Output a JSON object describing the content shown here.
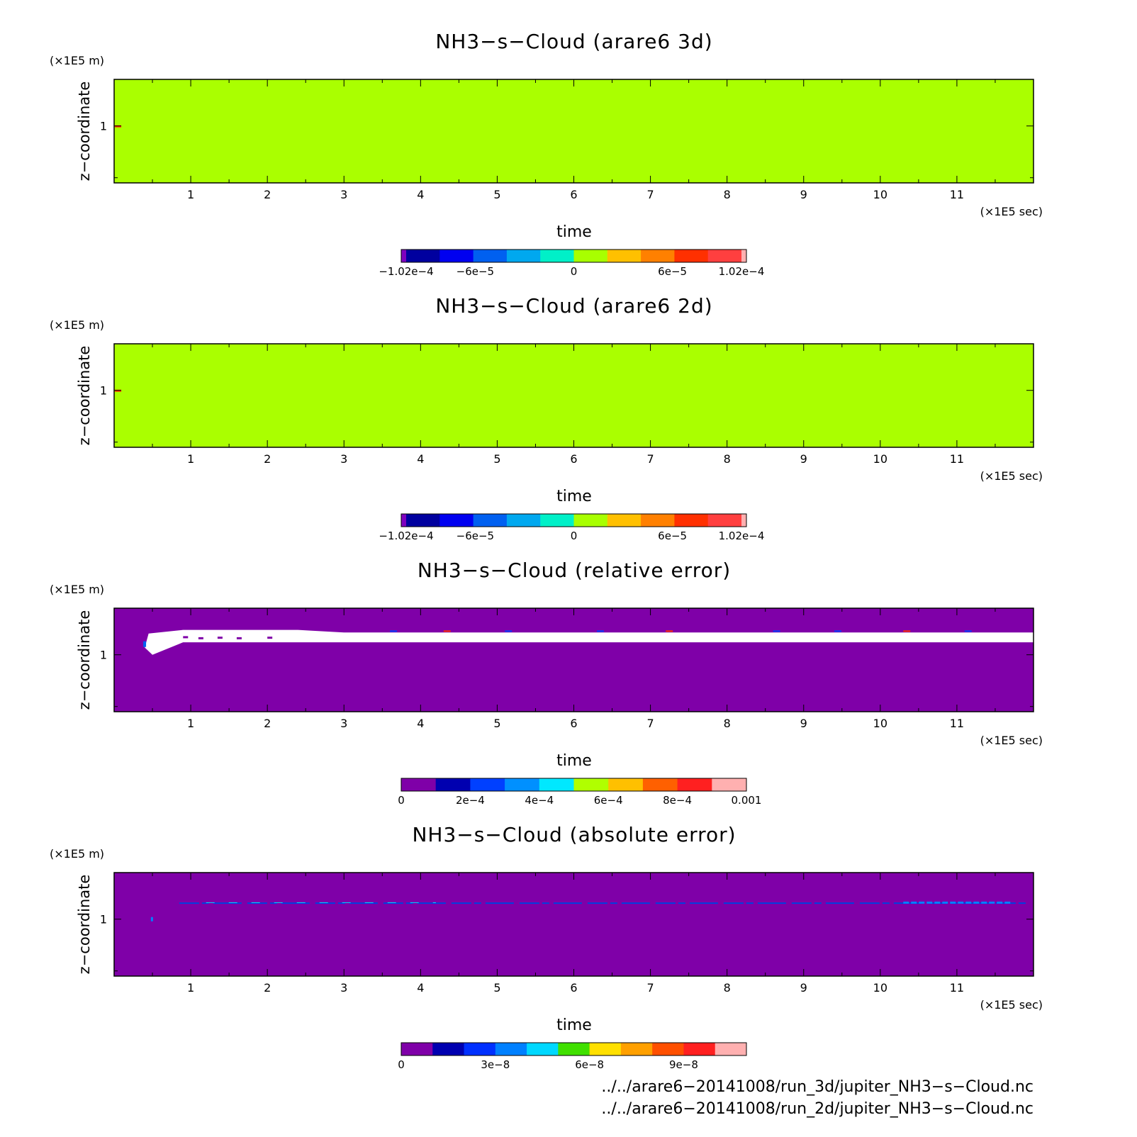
{
  "chart_data": [
    {
      "type": "heatmap",
      "title": "NH3−s−Cloud (arare6 3d)",
      "xlabel": "time",
      "x_unit": "(×1E5 sec)",
      "ylabel": "z−coordinate",
      "y_unit": "(×1E5 m)",
      "xlim": [
        0,
        12
      ],
      "ylim": [
        0.45,
        1.45
      ],
      "x_ticks": [
        "1",
        "2",
        "3",
        "4",
        "5",
        "6",
        "7",
        "8",
        "9",
        "10",
        "11"
      ],
      "y_ticks": [
        "1"
      ],
      "background_color": "#aaff00",
      "colorbar": {
        "colors": [
          "#7f00bf",
          "#00009f",
          "#0000f0",
          "#0060f0",
          "#00a8ef",
          "#00f0c8",
          "#a8ff00",
          "#ffc000",
          "#ff8000",
          "#ff3000",
          "#ff3f3f",
          "#ffb0b0"
        ],
        "tick_labels": [
          "−1.02e−4",
          "−6e−5",
          "0",
          "6e−5",
          "1.02e−4"
        ],
        "tick_values": [
          -0.000102,
          -6e-05,
          0,
          6e-05,
          0.000102
        ],
        "range": [
          -0.000102,
          0.000102
        ]
      }
    },
    {
      "type": "heatmap",
      "title": "NH3−s−Cloud (arare6 2d)",
      "xlabel": "time",
      "x_unit": "(×1E5 sec)",
      "ylabel": "z−coordinate",
      "y_unit": "(×1E5 m)",
      "xlim": [
        0,
        12
      ],
      "ylim": [
        0.45,
        1.45
      ],
      "x_ticks": [
        "1",
        "2",
        "3",
        "4",
        "5",
        "6",
        "7",
        "8",
        "9",
        "10",
        "11"
      ],
      "y_ticks": [
        "1"
      ],
      "background_color": "#aaff00",
      "colorbar": {
        "colors": [
          "#7f00bf",
          "#00009f",
          "#0000f0",
          "#0060f0",
          "#00a8ef",
          "#00f0c8",
          "#a8ff00",
          "#ffc000",
          "#ff8000",
          "#ff3000",
          "#ff3f3f",
          "#ffb0b0"
        ],
        "tick_labels": [
          "−1.02e−4",
          "−6e−5",
          "0",
          "6e−5",
          "1.02e−4"
        ],
        "tick_values": [
          -0.000102,
          -6e-05,
          0,
          6e-05,
          0.000102
        ],
        "range": [
          -0.000102,
          0.000102
        ]
      }
    },
    {
      "type": "heatmap",
      "title": "NH3−s−Cloud (relative error)",
      "xlabel": "time",
      "x_unit": "(×1E5 sec)",
      "ylabel": "z−coordinate",
      "y_unit": "(×1E5 m)",
      "xlim": [
        0,
        12
      ],
      "ylim": [
        0.45,
        1.45
      ],
      "x_ticks": [
        "1",
        "2",
        "3",
        "4",
        "5",
        "6",
        "7",
        "8",
        "9",
        "10",
        "11"
      ],
      "y_ticks": [
        "1"
      ],
      "background_color": "#7f00a8",
      "colorbar": {
        "colors": [
          "#7f00a8",
          "#0000b0",
          "#0040ff",
          "#0090ff",
          "#00e8ff",
          "#b0ff00",
          "#ffc000",
          "#ff6000",
          "#ff2020",
          "#ffb0b0"
        ],
        "tick_labels": [
          "0",
          "2e−4",
          "4e−4",
          "6e−4",
          "8e−4",
          "0.001"
        ],
        "tick_values": [
          0,
          0.0002,
          0.0004,
          0.0006,
          0.0008,
          0.001
        ],
        "range": [
          0,
          0.001
        ]
      }
    },
    {
      "type": "heatmap",
      "title": "NH3−s−Cloud (absolute error)",
      "xlabel": "time",
      "x_unit": "(×1E5 sec)",
      "ylabel": "z−coordinate",
      "y_unit": "(×1E5 m)",
      "xlim": [
        0,
        12
      ],
      "ylim": [
        0.45,
        1.45
      ],
      "x_ticks": [
        "1",
        "2",
        "3",
        "4",
        "5",
        "6",
        "7",
        "8",
        "9",
        "10",
        "11"
      ],
      "y_ticks": [
        "1"
      ],
      "background_color": "#7f00a8",
      "colorbar": {
        "colors": [
          "#7f00a8",
          "#0000b0",
          "#0030ff",
          "#0080ff",
          "#00d8ff",
          "#40e000",
          "#ffe000",
          "#ffa000",
          "#ff5000",
          "#ff2020",
          "#ffb0b0"
        ],
        "tick_labels": [
          "0",
          "3e−8",
          "6e−8",
          "9e−8"
        ],
        "tick_values": [
          0,
          3e-08,
          6e-08,
          9e-08
        ],
        "range": [
          0,
          1.1e-07
        ]
      }
    }
  ],
  "footer": {
    "line1": "../../arare6−20141008/run_3d/jupiter_NH3−s−Cloud.nc",
    "line2": "../../arare6−20141008/run_2d/jupiter_NH3−s−Cloud.nc"
  }
}
